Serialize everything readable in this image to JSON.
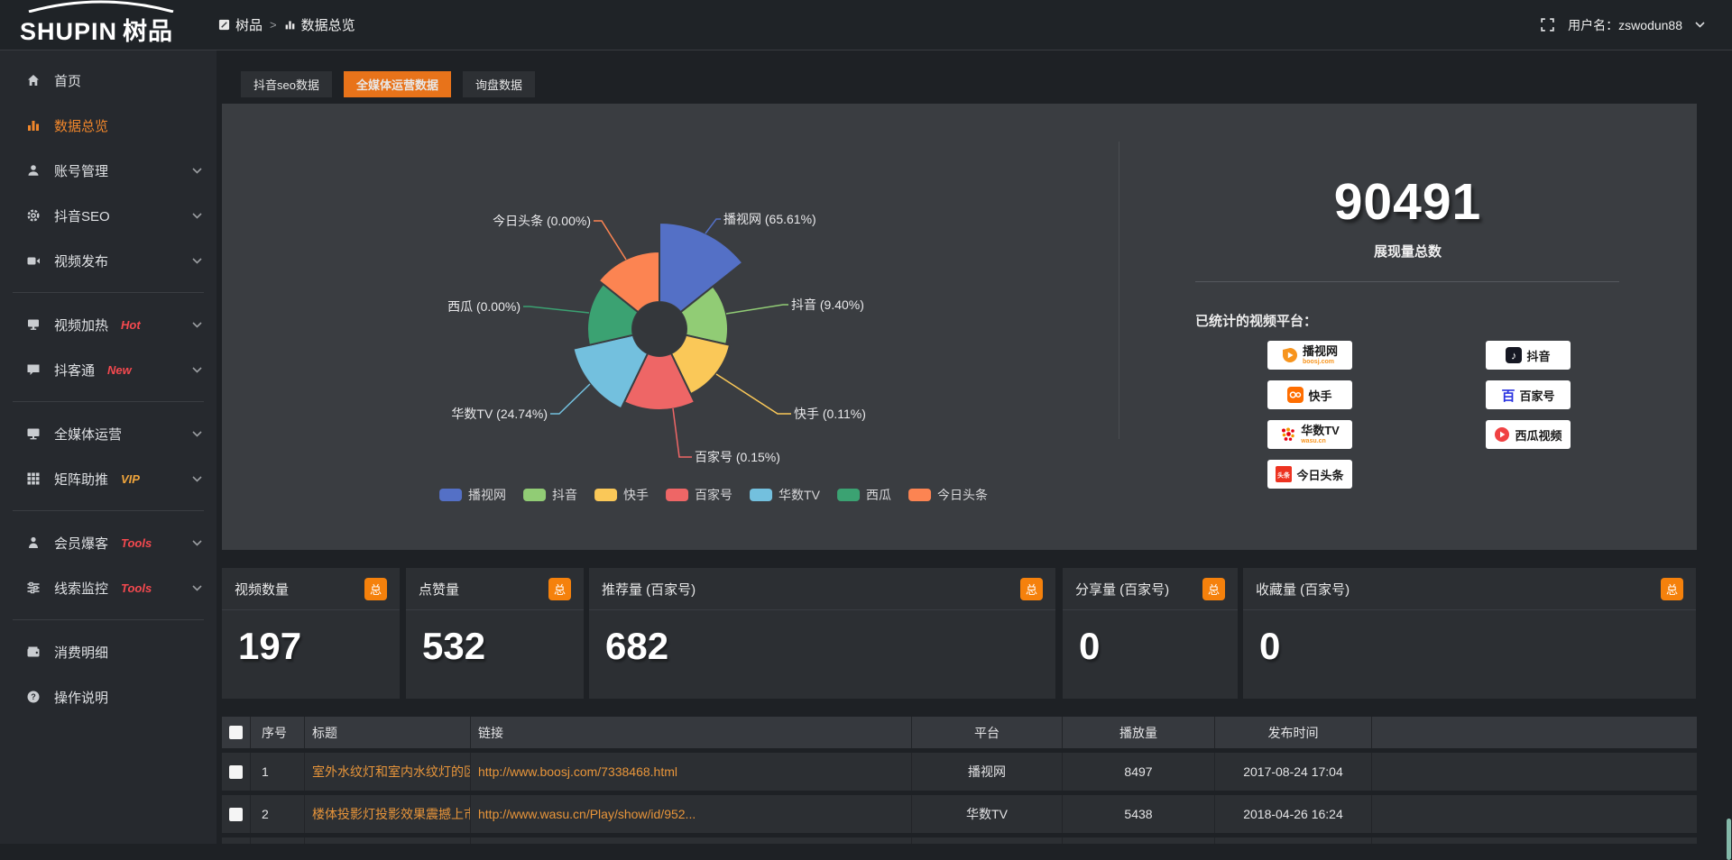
{
  "colors": {
    "accent_orange": "#e8731a",
    "badge_orange": "#f5810c",
    "active_text_orange": "#f0862b",
    "hot_red": "#f4494f",
    "vip_yellow": "#f0a53c",
    "link_orange": "#e8953a",
    "panel_bg": "#3a3d41",
    "card_bg": "#2c2f33"
  },
  "header": {
    "logo_main": "SHUPIN",
    "logo_cn": "树品",
    "breadcrumb_root": "树品",
    "breadcrumb_sep": ">",
    "breadcrumb_current": "数据总览",
    "username_label": "用户名：zswodun88"
  },
  "sidebar": {
    "items": [
      {
        "label": "首页",
        "badge": "",
        "has_children": false,
        "active": false
      },
      {
        "label": "数据总览",
        "badge": "",
        "has_children": false,
        "active": true
      },
      {
        "label": "账号管理",
        "badge": "",
        "has_children": true,
        "active": false
      },
      {
        "label": "抖音SEO",
        "badge": "",
        "has_children": true,
        "active": false
      },
      {
        "label": "视频发布",
        "badge": "",
        "has_children": true,
        "active": false
      },
      {
        "label": "视频加热",
        "badge": "Hot",
        "has_children": true,
        "active": false
      },
      {
        "label": "抖客通",
        "badge": "New",
        "has_children": true,
        "active": false
      },
      {
        "label": "全媒体运营",
        "badge": "",
        "has_children": true,
        "active": false
      },
      {
        "label": "矩阵助推",
        "badge": "VIP",
        "has_children": true,
        "active": false
      },
      {
        "label": "会员爆客",
        "badge": "Tools",
        "has_children": true,
        "active": false
      },
      {
        "label": "线索监控",
        "badge": "Tools",
        "has_children": true,
        "active": false
      },
      {
        "label": "消费明细",
        "badge": "",
        "has_children": false,
        "active": false
      },
      {
        "label": "操作说明",
        "badge": "",
        "has_children": false,
        "active": false
      }
    ]
  },
  "tabs": [
    {
      "label": "抖音seo数据",
      "active": false
    },
    {
      "label": "全媒体运营数据",
      "active": true
    },
    {
      "label": "询盘数据",
      "active": false
    }
  ],
  "chart_data": {
    "type": "pie",
    "variant": "nightingale-rose",
    "legend_position": "bottom",
    "inner_radius": 30,
    "items": [
      {
        "name": "播视网",
        "pct": 65.61,
        "label": "播视网 (65.61%)",
        "color": "#5470c6",
        "display_radius": 118
      },
      {
        "name": "抖音",
        "pct": 9.4,
        "label": "抖音 (9.40%)",
        "color": "#91cc75",
        "display_radius": 76
      },
      {
        "name": "快手",
        "pct": 0.11,
        "label": "快手 (0.11%)",
        "color": "#fac858",
        "display_radius": 80
      },
      {
        "name": "百家号",
        "pct": 0.15,
        "label": "百家号 (0.15%)",
        "color": "#ee6666",
        "display_radius": 90
      },
      {
        "name": "华数TV",
        "pct": 24.74,
        "label": "华数TV (24.74%)",
        "color": "#73c0de",
        "display_radius": 98
      },
      {
        "name": "西瓜",
        "pct": 0.0,
        "label": "西瓜 (0.00%)",
        "color": "#3ba272",
        "display_radius": 80
      },
      {
        "name": "今日头条",
        "pct": 0.0,
        "label": "今日头条 (0.00%)",
        "color": "#fc8452",
        "display_radius": 86
      }
    ]
  },
  "summary": {
    "total_value": "90491",
    "total_label": "展现量总数",
    "platforms_label": "已统计的视频平台：",
    "platforms_left": [
      {
        "name": "播视网",
        "sub": "boosj.com"
      },
      {
        "name": "快手",
        "sub": ""
      },
      {
        "name": "华数TV",
        "sub": "wasu.cn"
      },
      {
        "name": "今日头条",
        "sub": "",
        "icon_text": "头条"
      }
    ],
    "platforms_right": [
      {
        "name": "抖音",
        "sub": ""
      },
      {
        "name": "百家号",
        "sub": "",
        "icon_text": "百"
      },
      {
        "name": "西瓜视频",
        "sub": ""
      }
    ]
  },
  "stat_cards": [
    {
      "title": "视频数量",
      "badge": "总",
      "value": "197"
    },
    {
      "title": "点赞量",
      "badge": "总",
      "value": "532"
    },
    {
      "title": "推荐量 (百家号)",
      "badge": "总",
      "value": "682"
    },
    {
      "title": "分享量 (百家号)",
      "badge": "总",
      "value": "0"
    },
    {
      "title": "收藏量 (百家号)",
      "badge": "总",
      "value": "0"
    }
  ],
  "table": {
    "columns": [
      "序号",
      "标题",
      "链接",
      "平台",
      "播放量",
      "发布时间"
    ],
    "rows": [
      {
        "sn": "1",
        "title": "室外水纹灯和室内水纹灯的区别和简介",
        "link": "http://www.boosj.com/7338468.html",
        "platform": "播视网",
        "plays": "8497",
        "time": "2017-08-24 17:04"
      },
      {
        "sn": "2",
        "title": "楼体投影灯投影效果震撼上市",
        "link": "http://www.wasu.cn/Play/show/id/952...",
        "platform": "华数TV",
        "plays": "5438",
        "time": "2018-04-26 16:24"
      }
    ]
  }
}
